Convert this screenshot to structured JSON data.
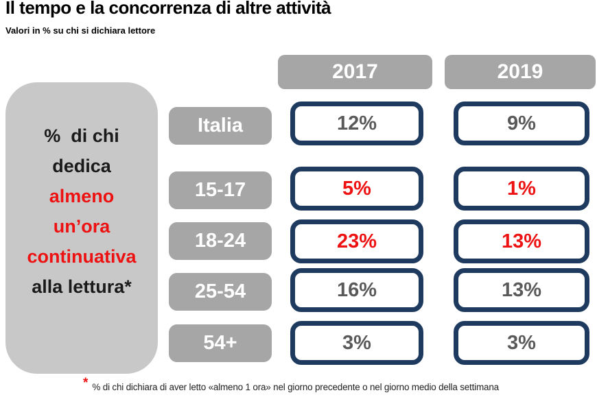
{
  "title": "Il tempo e la concorrenza di altre attività",
  "subtitle": "Valori in % su chi si dichiara lettore",
  "colors": {
    "navy_border": "#1f3a5f",
    "label_gray": "#a6a6a6",
    "panel_gray": "#c8c8c8",
    "value_gray": "#595959",
    "red": "#ee1111",
    "black": "#1a1a1a"
  },
  "left_panel": {
    "lines": [
      {
        "text": "%  di chi",
        "color": "#1a1a1a"
      },
      {
        "text": "dedica",
        "color": "#1a1a1a"
      },
      {
        "text": "almeno",
        "color": "#ee1111"
      },
      {
        "text": "un’ora",
        "color": "#ee1111"
      },
      {
        "text": "continuativa",
        "color": "#ee1111"
      },
      {
        "text": "alla lettura*",
        "color": "#1a1a1a"
      }
    ]
  },
  "columns": [
    {
      "label": "2017"
    },
    {
      "label": "2019"
    }
  ],
  "rows": [
    {
      "label": "Italia",
      "v2017": "12%",
      "v2019": "9%",
      "value_color": "#595959"
    },
    {
      "label": "15-17",
      "v2017": "5%",
      "v2019": "1%",
      "value_color": "#ee1111"
    },
    {
      "label": "18-24",
      "v2017": "23%",
      "v2019": "13%",
      "value_color": "#ee1111"
    },
    {
      "label": "25-54",
      "v2017": "16%",
      "v2019": "13%",
      "value_color": "#595959"
    },
    {
      "label": "54+",
      "v2017": "3%",
      "v2019": "3%",
      "value_color": "#595959"
    }
  ],
  "footnote": {
    "marker": "*",
    "marker_color": "#ee1111",
    "text": "% di chi dichiara di aver letto «almeno 1 ora» nel giorno precedente o nel giorno medio della settimana"
  },
  "chart_data": {
    "type": "table",
    "title": "Il tempo e la concorrenza di altre attività",
    "subtitle": "Valori in % su chi si dichiara lettore",
    "row_description": "% di chi dedica almeno un’ora continuativa alla lettura*",
    "categories": [
      "Italia",
      "15-17",
      "18-24",
      "25-54",
      "54+"
    ],
    "series": [
      {
        "name": "2017",
        "values": [
          12,
          5,
          23,
          16,
          3
        ]
      },
      {
        "name": "2019",
        "values": [
          9,
          1,
          13,
          13,
          3
        ]
      }
    ],
    "unit": "%",
    "highlighted_categories": [
      "15-17",
      "18-24"
    ],
    "footnote": "* % di chi dichiara di aver letto «almeno 1 ora» nel giorno precedente o nel giorno medio della settimana"
  }
}
